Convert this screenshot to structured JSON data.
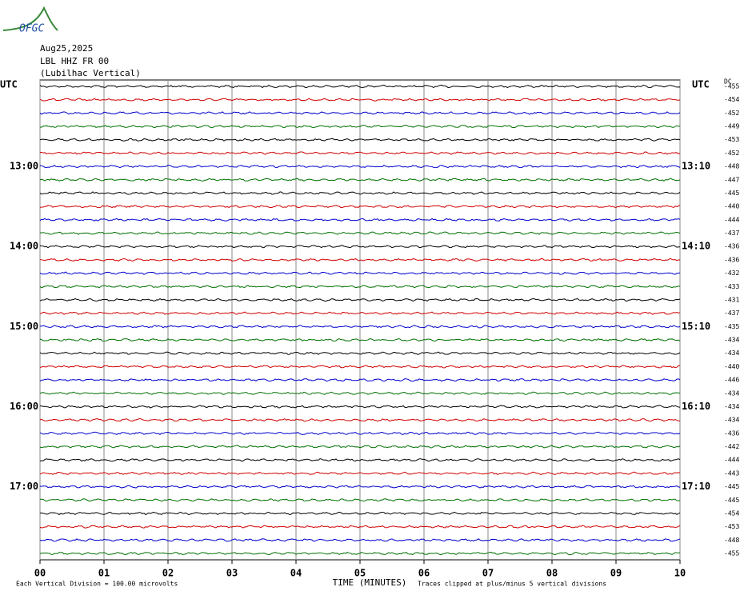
{
  "chart_data": {
    "type": "helicorder",
    "logo": "OFGC",
    "title_lines": [
      "Aug25,2025",
      "LBL HHZ FR 00",
      "(Lubilhac Vertical)"
    ],
    "left_header": "UTC",
    "right_header": "UTC",
    "dc_header": "DC",
    "xlabel": "TIME (MINUTES)",
    "footer_left": "Each Vertical Division =  100.00 microvolts",
    "footer_right": "Traces clipped at plus/minus 5 vertical divisions",
    "xlim": [
      0,
      10
    ],
    "xticks": [
      {
        "value": 0,
        "label": "00"
      },
      {
        "value": 1,
        "label": "01"
      },
      {
        "value": 2,
        "label": "02"
      },
      {
        "value": 3,
        "label": "03"
      },
      {
        "value": 4,
        "label": "04"
      },
      {
        "value": 5,
        "label": "05"
      },
      {
        "value": 6,
        "label": "06"
      },
      {
        "value": 7,
        "label": "07"
      },
      {
        "value": 8,
        "label": "08"
      },
      {
        "value": 9,
        "label": "09"
      },
      {
        "value": 10,
        "label": "10"
      }
    ],
    "colors": [
      "#000000",
      "#d00000",
      "#0000cc",
      "#007000"
    ],
    "rows": [
      {
        "dc": -455
      },
      {
        "dc": -454
      },
      {
        "dc": -452
      },
      {
        "dc": -449
      },
      {
        "dc": -453
      },
      {
        "dc": -452
      },
      {
        "dc": -448,
        "left": "13:00",
        "right": "13:10"
      },
      {
        "dc": -447
      },
      {
        "dc": -445
      },
      {
        "dc": -440
      },
      {
        "dc": -444
      },
      {
        "dc": -437
      },
      {
        "dc": -436,
        "left": "14:00",
        "right": "14:10"
      },
      {
        "dc": -436
      },
      {
        "dc": -432
      },
      {
        "dc": -433
      },
      {
        "dc": -431
      },
      {
        "dc": -437
      },
      {
        "dc": -435,
        "left": "15:00",
        "right": "15:10"
      },
      {
        "dc": -434
      },
      {
        "dc": -434
      },
      {
        "dc": -440
      },
      {
        "dc": -446
      },
      {
        "dc": -434
      },
      {
        "dc": -434,
        "left": "16:00",
        "right": "16:10"
      },
      {
        "dc": -434
      },
      {
        "dc": -436
      },
      {
        "dc": -442
      },
      {
        "dc": -444
      },
      {
        "dc": -443
      },
      {
        "dc": -445,
        "left": "17:00",
        "right": "17:10"
      },
      {
        "dc": -445
      },
      {
        "dc": -454
      },
      {
        "dc": -453
      },
      {
        "dc": -448
      },
      {
        "dc": -455
      }
    ]
  }
}
